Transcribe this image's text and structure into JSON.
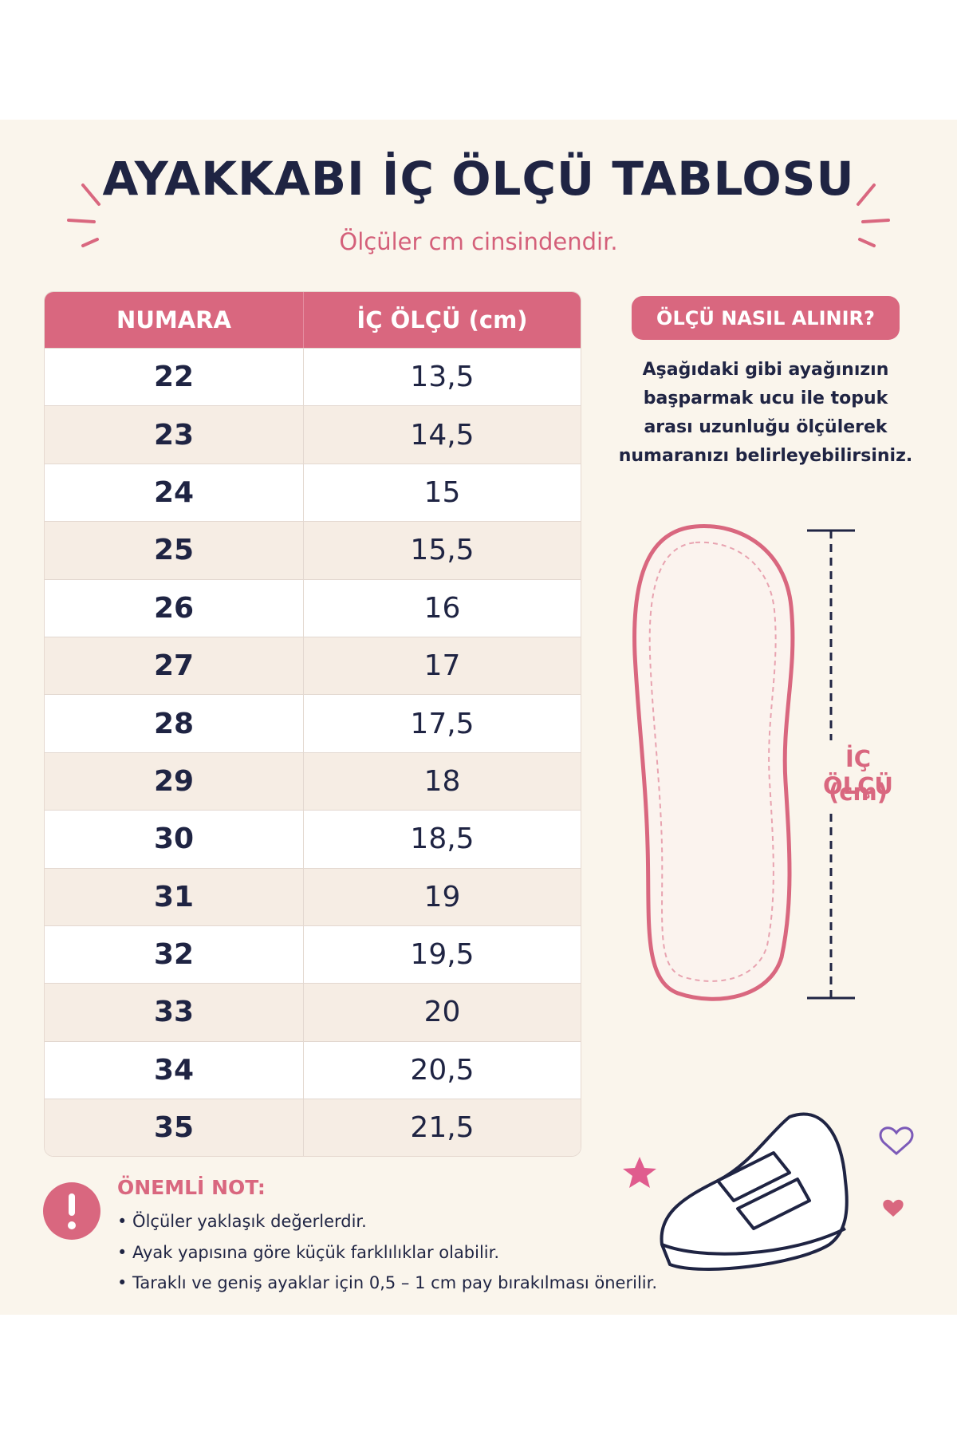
{
  "header": {
    "title": "AYAKKABI İÇ ÖLÇÜ TABLOSU",
    "subtitle": "Ölçüler cm cinsindendir."
  },
  "table": {
    "headers": [
      "NUMARA",
      "İÇ ÖLÇÜ (cm)"
    ],
    "rows": [
      [
        "22",
        "13,5"
      ],
      [
        "23",
        "14,5"
      ],
      [
        "24",
        "15"
      ],
      [
        "25",
        "15,5"
      ],
      [
        "26",
        "16"
      ],
      [
        "27",
        "17"
      ],
      [
        "28",
        "17,5"
      ],
      [
        "29",
        "18"
      ],
      [
        "30",
        "18,5"
      ],
      [
        "31",
        "19"
      ],
      [
        "32",
        "19,5"
      ],
      [
        "33",
        "20"
      ],
      [
        "34",
        "20,5"
      ],
      [
        "35",
        "21,5"
      ]
    ]
  },
  "guide": {
    "title": "ÖLÇÜ NASIL ALINIR?",
    "description": [
      "Aşağıdaki gibi ayağınızın",
      "başparmak ucu ile topuk",
      "arası uzunluğu ölçülerek",
      "numaranızı belirleyebilirsiniz."
    ],
    "measure_label": "İÇ ÖLÇÜ",
    "measure_unit": "(cm)"
  },
  "note": {
    "title": "ÖNEMLİ NOT:",
    "items": [
      "• Ölçüler yaklaşık değerlerdir.",
      "• Ayak yapısına göre küçük farklılıklar olabilir.",
      "• Taraklı ve geniş ayaklar için 0,5 – 1 cm pay bırakılması önerilir."
    ]
  }
}
